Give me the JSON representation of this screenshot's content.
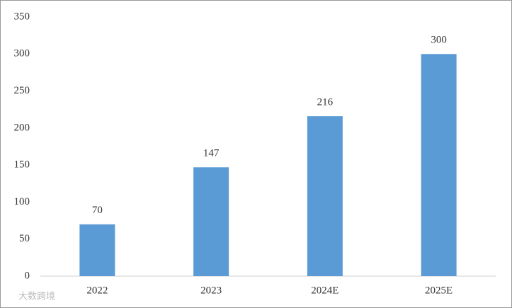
{
  "chart_data": {
    "type": "bar",
    "categories": [
      "2022",
      "2023",
      "2024E",
      "2025E"
    ],
    "values": [
      70,
      147,
      216,
      300
    ],
    "color": "#5b9bd5",
    "ylim": [
      0,
      350
    ],
    "yticks": [
      0,
      50,
      100,
      150,
      200,
      250,
      300,
      350
    ],
    "grid": false,
    "data_labels": true,
    "watermark": "大数跨境"
  }
}
